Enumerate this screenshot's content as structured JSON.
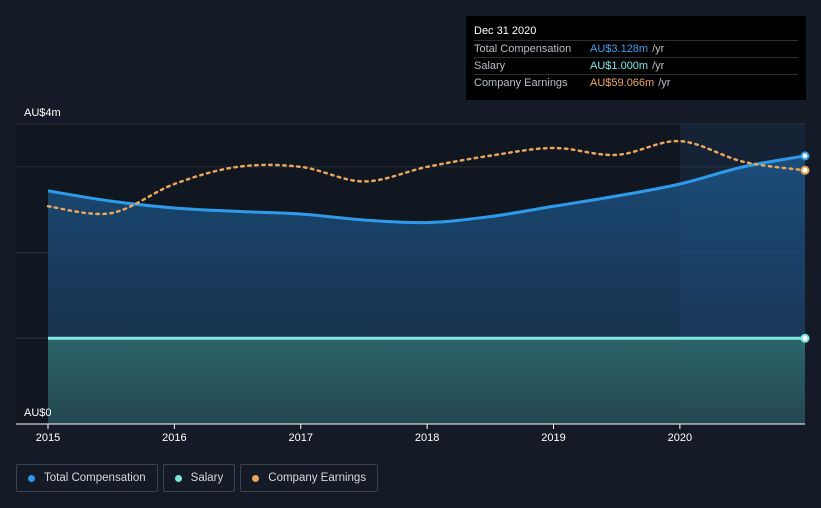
{
  "tooltip": {
    "date": "Dec 31 2020",
    "rows": [
      {
        "label": "Total Compensation",
        "value": "AU$3.128m",
        "unit": "/yr",
        "color": "#3aa0f0"
      },
      {
        "label": "Salary",
        "value": "AU$1.000m",
        "unit": "/yr",
        "color": "#7ce8e0"
      },
      {
        "label": "Company Earnings",
        "value": "AU$59.066m",
        "unit": "/yr",
        "color": "#f0a95a"
      }
    ]
  },
  "legend": [
    {
      "label": "Total Compensation",
      "color": "#2e9bea"
    },
    {
      "label": "Salary",
      "color": "#7ce8e0"
    },
    {
      "label": "Company Earnings",
      "color": "#e9a55a"
    }
  ],
  "chart_data": {
    "type": "line",
    "y_unit_labels": {
      "top": "AU$4m",
      "bottom": "AU$0"
    },
    "ylim": [
      0,
      3.5
    ],
    "xlim": [
      2015,
      2020.99
    ],
    "x_ticks": [
      "2015",
      "2016",
      "2017",
      "2018",
      "2019",
      "2020"
    ],
    "grid": true,
    "forecast_shade_start": 2020,
    "series": [
      {
        "name": "Total Compensation",
        "color": "#2e9bea",
        "points": [
          [
            2015.0,
            2.72
          ],
          [
            2015.5,
            2.6
          ],
          [
            2016.0,
            2.52
          ],
          [
            2016.5,
            2.48
          ],
          [
            2017.0,
            2.45
          ],
          [
            2017.5,
            2.38
          ],
          [
            2018.0,
            2.35
          ],
          [
            2018.5,
            2.42
          ],
          [
            2019.0,
            2.54
          ],
          [
            2019.5,
            2.66
          ],
          [
            2020.0,
            2.8
          ],
          [
            2020.5,
            3.0
          ],
          [
            2020.99,
            3.128
          ]
        ],
        "end_value": 3.128
      },
      {
        "name": "Salary",
        "color": "#7ce8e0",
        "points": [
          [
            2015.0,
            1.0
          ],
          [
            2020.99,
            1.0
          ]
        ],
        "end_value": 1.0
      },
      {
        "name": "Company Earnings",
        "color": "#e9a55a",
        "unit_note": "plotted on independent scale",
        "points": [
          [
            2015.0,
            2.54
          ],
          [
            2015.5,
            2.46
          ],
          [
            2016.0,
            2.8
          ],
          [
            2016.5,
            3.0
          ],
          [
            2017.0,
            3.0
          ],
          [
            2017.5,
            2.83
          ],
          [
            2018.0,
            3.0
          ],
          [
            2018.5,
            3.13
          ],
          [
            2019.0,
            3.22
          ],
          [
            2019.5,
            3.14
          ],
          [
            2020.0,
            3.3
          ],
          [
            2020.5,
            3.06
          ],
          [
            2020.99,
            2.96
          ]
        ],
        "end_value": 59.066
      }
    ]
  }
}
